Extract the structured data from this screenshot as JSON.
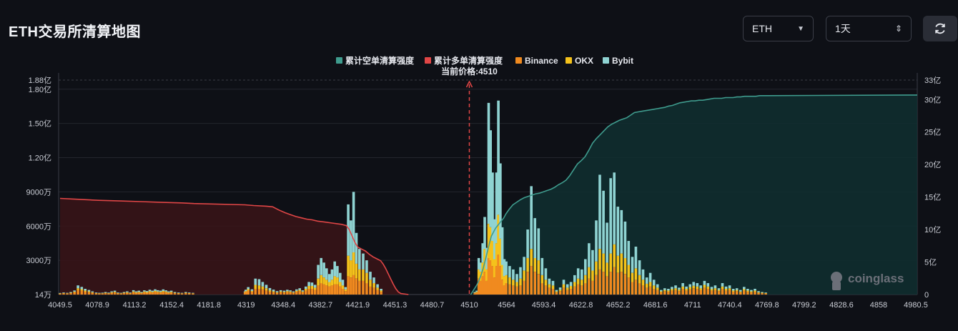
{
  "page": {
    "title": "ETH交易所清算地图"
  },
  "controls": {
    "symbol": "ETH",
    "range": "1天"
  },
  "colors": {
    "short_cum": "#3f9c8e",
    "long_cum": "#e04646",
    "binance": "#f08a1f",
    "okx": "#f5c21b",
    "bybit": "#8fd3d2",
    "background": "#0e1016"
  },
  "chart_data": {
    "type": "bar",
    "current_price_label": "当前价格:4510",
    "current_price": 4510,
    "legend": [
      "累计空单清算强度",
      "累计多单清算强度",
      "Binance",
      "OKX",
      "Bybit"
    ],
    "legend_placement": "top-center",
    "x_ticks": [
      "4049.5",
      "4078.9",
      "4113.2",
      "4152.4",
      "4181.8",
      "4319",
      "4348.4",
      "4382.7",
      "4421.9",
      "4451.3",
      "4480.7",
      "4510",
      "4564",
      "4593.4",
      "4622.8",
      "4652.2",
      "4681.6",
      "4711",
      "4740.4",
      "4769.8",
      "4799.2",
      "4828.6",
      "4858",
      "4980.5"
    ],
    "y_left_ticks": [
      "1.88亿",
      "1.80亿",
      "1.50亿",
      "1.20亿",
      "9000万",
      "6000万",
      "3000万",
      "14万"
    ],
    "y_left_range": [
      1400000,
      188000000
    ],
    "y_right_ticks": [
      "33亿",
      "30亿",
      "25亿",
      "20亿",
      "15亿",
      "10亿",
      "5亿",
      "0"
    ],
    "y_right_range": [
      0,
      33
    ],
    "y_right_unit": "亿",
    "bars": [
      [
        4049.5,
        0.7,
        0.3,
        0.4
      ],
      [
        4052.3,
        1.0,
        0.3,
        0.5
      ],
      [
        4055.2,
        0.8,
        0.3,
        0.4
      ],
      [
        4058.0,
        1.2,
        0.4,
        0.6
      ],
      [
        4060.9,
        2.0,
        0.6,
        1.0
      ],
      [
        4063.7,
        4.0,
        1.5,
        2.5
      ],
      [
        4066.6,
        3.5,
        1.2,
        2.0
      ],
      [
        4069.4,
        2.5,
        1.0,
        1.5
      ],
      [
        4072.3,
        2.0,
        0.8,
        1.2
      ],
      [
        4075.1,
        1.5,
        0.5,
        0.8
      ],
      [
        4078.0,
        1.0,
        0.3,
        0.5
      ],
      [
        4080.8,
        0.8,
        0.3,
        0.4
      ],
      [
        4083.7,
        0.8,
        0.3,
        0.5
      ],
      [
        4086.5,
        1.2,
        0.4,
        0.6
      ],
      [
        4089.4,
        0.9,
        0.3,
        0.5
      ],
      [
        4092.2,
        1.5,
        0.5,
        0.8
      ],
      [
        4095.1,
        1.8,
        0.6,
        1.0
      ],
      [
        4097.9,
        1.0,
        0.3,
        0.5
      ],
      [
        4100.8,
        0.8,
        0.3,
        0.4
      ],
      [
        4103.6,
        1.2,
        0.4,
        0.6
      ],
      [
        4106.5,
        1.5,
        0.5,
        0.8
      ],
      [
        4109.3,
        1.0,
        0.3,
        0.5
      ],
      [
        4112.2,
        2.0,
        0.7,
        1.1
      ],
      [
        4115.0,
        1.5,
        0.5,
        0.8
      ],
      [
        4117.9,
        1.8,
        0.6,
        1.0
      ],
      [
        4120.7,
        1.2,
        0.4,
        0.6
      ],
      [
        4123.6,
        2.0,
        0.7,
        1.0
      ],
      [
        4126.4,
        1.6,
        0.6,
        0.9
      ],
      [
        4129.3,
        2.2,
        0.8,
        1.2
      ],
      [
        4132.1,
        1.8,
        0.6,
        1.0
      ],
      [
        4135.0,
        2.5,
        0.8,
        1.3
      ],
      [
        4137.8,
        2.0,
        0.7,
        1.1
      ],
      [
        4140.7,
        1.8,
        0.6,
        1.0
      ],
      [
        4143.5,
        2.4,
        0.8,
        1.3
      ],
      [
        4146.4,
        2.0,
        0.7,
        1.0
      ],
      [
        4149.2,
        1.5,
        0.5,
        0.8
      ],
      [
        4152.1,
        1.8,
        0.6,
        1.0
      ],
      [
        4154.9,
        1.2,
        0.4,
        0.6
      ],
      [
        4157.8,
        1.0,
        0.3,
        0.5
      ],
      [
        4160.6,
        0.8,
        0.3,
        0.4
      ],
      [
        4163.5,
        1.2,
        0.4,
        0.6
      ],
      [
        4166.3,
        1.0,
        0.3,
        0.5
      ],
      [
        4169.2,
        0.8,
        0.3,
        0.4
      ],
      [
        4315.0,
        1.5,
        0.5,
        0.8
      ],
      [
        4317.9,
        2.2,
        0.8,
        1.2
      ],
      [
        4320.7,
        3.5,
        1.2,
        1.8
      ],
      [
        4323.6,
        2.5,
        0.8,
        1.3
      ],
      [
        4326.4,
        5.0,
        3.5,
        5.5
      ],
      [
        4329.3,
        5.0,
        3.0,
        5.5
      ],
      [
        4332.1,
        4.5,
        2.5,
        4.0
      ],
      [
        4335.0,
        3.5,
        2.0,
        3.0
      ],
      [
        4337.8,
        2.5,
        1.2,
        2.0
      ],
      [
        4340.7,
        2.0,
        0.8,
        1.5
      ],
      [
        4343.5,
        1.5,
        0.5,
        1.0
      ],
      [
        4346.4,
        2.0,
        0.8,
        1.0
      ],
      [
        4349.2,
        1.8,
        0.6,
        1.0
      ],
      [
        4352.1,
        2.2,
        0.8,
        1.2
      ],
      [
        4354.9,
        2.0,
        0.7,
        1.0
      ],
      [
        4357.8,
        1.5,
        0.5,
        0.8
      ],
      [
        4360.6,
        2.5,
        0.8,
        1.2
      ],
      [
        4363.5,
        3.0,
        1.0,
        1.5
      ],
      [
        4366.3,
        2.0,
        0.7,
        1.0
      ],
      [
        4369.2,
        3.5,
        1.5,
        2.0
      ],
      [
        4372.0,
        5.0,
        2.5,
        3.5
      ],
      [
        4374.9,
        5.0,
        2.5,
        3.0
      ],
      [
        4377.7,
        4.0,
        2.0,
        2.5
      ],
      [
        4380.6,
        8.0,
        6.0,
        12.0
      ],
      [
        4383.4,
        10.0,
        7.0,
        15.0
      ],
      [
        4386.3,
        9.0,
        6.0,
        13.0
      ],
      [
        4389.1,
        8.0,
        5.0,
        10.0
      ],
      [
        4392.0,
        7.0,
        4.0,
        7.0
      ],
      [
        4394.8,
        8.0,
        5.0,
        9.0
      ],
      [
        4397.7,
        9.0,
        7.0,
        13.0
      ],
      [
        4400.5,
        9.0,
        6.0,
        10.0
      ],
      [
        4403.4,
        7.0,
        4.0,
        8.0
      ],
      [
        4406.2,
        5.0,
        3.0,
        5.0
      ],
      [
        4409.1,
        3.0,
        1.5,
        2.0
      ],
      [
        4411.9,
        16.0,
        18.0,
        45.0
      ],
      [
        4414.8,
        15.0,
        15.0,
        35.0
      ],
      [
        4417.6,
        17.0,
        20.0,
        53.0
      ],
      [
        4420.5,
        14.0,
        13.0,
        27.0
      ],
      [
        4423.3,
        12.0,
        10.0,
        18.0
      ],
      [
        4426.2,
        12.0,
        10.0,
        14.0
      ],
      [
        4429.0,
        10.0,
        9.0,
        11.0
      ],
      [
        4431.9,
        7.0,
        6.0,
        7.0
      ],
      [
        4434.7,
        6.0,
        4.0,
        5.0
      ],
      [
        4437.6,
        4.0,
        2.0,
        3.0
      ],
      [
        4440.4,
        2.5,
        1.0,
        1.5
      ],
      [
        4518.0,
        1.2,
        0.4,
        0.6
      ],
      [
        4520.9,
        1.8,
        0.6,
        1.0
      ],
      [
        4523.7,
        14.0,
        8.0,
        10.0
      ],
      [
        4526.6,
        12.0,
        8.0,
        8.0
      ],
      [
        4529.4,
        16.0,
        12.0,
        17.0
      ],
      [
        4532.3,
        20.0,
        20.0,
        28.0
      ],
      [
        4535.1,
        12.0,
        10.0,
        19.0
      ],
      [
        4538.0,
        32.0,
        30.0,
        106.0
      ],
      [
        4540.8,
        30.0,
        29.0,
        85.0
      ],
      [
        4543.7,
        25.0,
        22.0,
        60.0
      ],
      [
        4546.5,
        15.0,
        16.0,
        35.0
      ],
      [
        4549.4,
        25.0,
        20.0,
        62.0
      ],
      [
        4552.2,
        35.0,
        35.0,
        100.0
      ],
      [
        4555.1,
        25.0,
        24.0,
        66.0
      ],
      [
        4557.9,
        13.0,
        13.0,
        33.0
      ],
      [
        4560.8,
        8.0,
        8.0,
        15.0
      ],
      [
        4563.6,
        10.0,
        7.0,
        12.0
      ],
      [
        4566.5,
        9.0,
        6.0,
        10.0
      ],
      [
        4569.3,
        8.0,
        5.0,
        9.0
      ],
      [
        4572.2,
        7.0,
        4.0,
        7.0
      ],
      [
        4575.0,
        8.0,
        6.0,
        10.0
      ],
      [
        4577.9,
        12.0,
        9.0,
        12.0
      ],
      [
        4580.7,
        20.0,
        12.0,
        25.0
      ],
      [
        4583.6,
        25.0,
        15.0,
        55.0
      ],
      [
        4586.4,
        20.0,
        12.0,
        35.0
      ],
      [
        4589.3,
        18.0,
        12.0,
        28.0
      ],
      [
        4592.1,
        10.0,
        7.0,
        15.0
      ],
      [
        4595.0,
        8.0,
        5.0,
        10.0
      ],
      [
        4597.8,
        6.0,
        3.0,
        5.0
      ],
      [
        4600.7,
        5.0,
        3.0,
        4.0
      ],
      [
        4603.5,
        2.0,
        0.8,
        1.2
      ],
      [
        4606.4,
        3.0,
        1.2,
        2.0
      ],
      [
        4609.2,
        6.0,
        3.0,
        4.0
      ],
      [
        4612.1,
        4.0,
        2.0,
        3.0
      ],
      [
        4614.9,
        5.0,
        2.5,
        3.5
      ],
      [
        4617.8,
        7.0,
        4.0,
        6.0
      ],
      [
        4620.6,
        9.0,
        5.0,
        9.0
      ],
      [
        4623.5,
        8.0,
        5.0,
        9.0
      ],
      [
        4626.3,
        10.0,
        7.0,
        14.0
      ],
      [
        4629.2,
        14.0,
        10.0,
        21.0
      ],
      [
        4632.0,
        12.0,
        9.0,
        18.0
      ],
      [
        4634.9,
        17.0,
        12.0,
        36.0
      ],
      [
        4637.7,
        22.0,
        18.0,
        65.0
      ],
      [
        4640.6,
        20.0,
        16.0,
        55.0
      ],
      [
        4643.4,
        16.0,
        12.0,
        35.0
      ],
      [
        4646.3,
        20.0,
        16.0,
        66.0
      ],
      [
        4649.1,
        24.0,
        20.0,
        63.0
      ],
      [
        4652.0,
        19.0,
        15.0,
        43.0
      ],
      [
        4654.8,
        20.0,
        16.0,
        38.0
      ],
      [
        4657.7,
        18.0,
        14.0,
        32.0
      ],
      [
        4660.5,
        15.0,
        11.0,
        21.0
      ],
      [
        4663.4,
        11.0,
        8.0,
        14.0
      ],
      [
        4666.2,
        13.0,
        10.0,
        19.0
      ],
      [
        4669.1,
        10.0,
        7.0,
        13.0
      ],
      [
        4671.9,
        8.0,
        5.0,
        9.0
      ],
      [
        4674.8,
        6.0,
        3.5,
        5.5
      ],
      [
        4677.6,
        7.0,
        4.0,
        8.0
      ],
      [
        4680.5,
        5.0,
        3.0,
        5.0
      ],
      [
        4683.3,
        4.0,
        2.0,
        3.0
      ],
      [
        4686.2,
        2.0,
        0.8,
        1.2
      ],
      [
        4689.0,
        3.0,
        1.0,
        1.5
      ],
      [
        4691.9,
        2.5,
        1.0,
        1.5
      ],
      [
        4694.7,
        3.5,
        1.2,
        2.0
      ],
      [
        4697.6,
        4.0,
        1.5,
        2.5
      ],
      [
        4700.4,
        3.0,
        1.2,
        1.8
      ],
      [
        4703.3,
        5.0,
        2.0,
        3.0
      ],
      [
        4706.1,
        3.5,
        1.5,
        2.0
      ],
      [
        4709.0,
        4.5,
        2.0,
        2.5
      ],
      [
        4711.8,
        5.5,
        2.2,
        3.3
      ],
      [
        4714.7,
        5.0,
        2.0,
        3.0
      ],
      [
        4717.5,
        4.0,
        1.5,
        2.5
      ],
      [
        4720.4,
        6.0,
        2.5,
        3.5
      ],
      [
        4723.2,
        5.0,
        2.0,
        3.0
      ],
      [
        4726.1,
        3.5,
        1.2,
        2.0
      ],
      [
        4728.9,
        4.0,
        1.5,
        2.5
      ],
      [
        4731.8,
        3.0,
        1.0,
        1.5
      ],
      [
        4734.6,
        5.0,
        2.0,
        3.0
      ],
      [
        4737.5,
        3.5,
        1.5,
        2.0
      ],
      [
        4740.3,
        4.0,
        1.5,
        2.5
      ],
      [
        4743.2,
        2.5,
        1.0,
        1.5
      ],
      [
        4746.0,
        3.0,
        1.0,
        1.5
      ],
      [
        4748.9,
        2.0,
        0.7,
        1.3
      ],
      [
        4751.7,
        3.5,
        1.2,
        2.0
      ],
      [
        4754.6,
        2.5,
        1.0,
        1.5
      ],
      [
        4757.4,
        2.0,
        0.8,
        1.2
      ],
      [
        4760.3,
        2.5,
        1.0,
        1.5
      ],
      [
        4763.1,
        1.5,
        0.5,
        1.0
      ],
      [
        4766.0,
        1.2,
        0.4,
        0.6
      ],
      [
        4768.8,
        1.0,
        0.3,
        0.5
      ]
    ],
    "short_cumulative": [
      [
        4512,
        0
      ],
      [
        4515,
        0.5
      ],
      [
        4518,
        1.0
      ],
      [
        4521,
        1.5
      ],
      [
        4524,
        2.2
      ],
      [
        4527,
        3.0
      ],
      [
        4530,
        4.0
      ],
      [
        4533,
        5.2
      ],
      [
        4536,
        6.5
      ],
      [
        4539,
        7.8
      ],
      [
        4542,
        9.0
      ],
      [
        4545,
        9.6
      ],
      [
        4548,
        10.2
      ],
      [
        4551,
        10.6
      ],
      [
        4554,
        11.0
      ],
      [
        4557,
        11.4
      ],
      [
        4560,
        11.8
      ],
      [
        4563,
        12.4
      ],
      [
        4566,
        13.1
      ],
      [
        4569,
        13.8
      ],
      [
        4572,
        14.2
      ],
      [
        4575,
        14.6
      ],
      [
        4578,
        14.9
      ],
      [
        4581,
        15.1
      ],
      [
        4584,
        15.3
      ],
      [
        4587,
        15.5
      ],
      [
        4590,
        15.6
      ],
      [
        4593,
        15.8
      ],
      [
        4596,
        16.0
      ],
      [
        4599,
        16.2
      ],
      [
        4602,
        16.5
      ],
      [
        4605,
        16.9
      ],
      [
        4608,
        17.2
      ],
      [
        4611,
        17.6
      ],
      [
        4614,
        18.3
      ],
      [
        4617,
        19.2
      ],
      [
        4620,
        20.1
      ],
      [
        4623,
        20.6
      ],
      [
        4626,
        21.2
      ],
      [
        4629,
        22.2
      ],
      [
        4632,
        23.3
      ],
      [
        4635,
        24.0
      ],
      [
        4638,
        24.6
      ],
      [
        4641,
        25.2
      ],
      [
        4644,
        25.8
      ],
      [
        4647,
        26.2
      ],
      [
        4650,
        26.5
      ],
      [
        4653,
        26.8
      ],
      [
        4656,
        27.0
      ],
      [
        4659,
        27.2
      ],
      [
        4662,
        27.6
      ],
      [
        4665,
        28.0
      ],
      [
        4668,
        28.1
      ],
      [
        4671,
        28.2
      ],
      [
        4674,
        28.3
      ],
      [
        4677,
        28.4
      ],
      [
        4680,
        28.5
      ],
      [
        4683,
        28.6
      ],
      [
        4686,
        28.7
      ],
      [
        4689,
        28.8
      ],
      [
        4692,
        29.0
      ],
      [
        4695,
        29.1
      ],
      [
        4698,
        29.3
      ],
      [
        4701,
        29.5
      ],
      [
        4704,
        29.6
      ],
      [
        4707,
        29.7
      ],
      [
        4710,
        29.8
      ],
      [
        4713,
        29.8
      ],
      [
        4716,
        29.9
      ],
      [
        4719,
        29.9
      ],
      [
        4722,
        30.0
      ],
      [
        4725,
        30.1
      ],
      [
        4728,
        30.2
      ],
      [
        4731,
        30.2
      ],
      [
        4734,
        30.2
      ],
      [
        4737,
        30.3
      ],
      [
        4740,
        30.3
      ],
      [
        4743,
        30.3
      ],
      [
        4746,
        30.4
      ],
      [
        4749,
        30.4
      ],
      [
        4752,
        30.5
      ],
      [
        4755,
        30.5
      ],
      [
        4758,
        30.5
      ],
      [
        4761,
        30.5
      ],
      [
        4764,
        30.6
      ],
      [
        4767,
        30.6
      ],
      [
        4770,
        30.6
      ]
    ],
    "long_cumulative": [
      [
        4049.5,
        14.8
      ],
      [
        4060,
        14.7
      ],
      [
        4080,
        14.5
      ],
      [
        4100,
        14.4
      ],
      [
        4120,
        14.3
      ],
      [
        4140,
        14.2
      ],
      [
        4160,
        14.1
      ],
      [
        4170,
        14.0
      ],
      [
        4315,
        13.8
      ],
      [
        4325,
        13.7
      ],
      [
        4335,
        13.6
      ],
      [
        4340,
        13.5
      ],
      [
        4345,
        13.0
      ],
      [
        4350,
        12.6
      ],
      [
        4355,
        12.3
      ],
      [
        4360,
        12.0
      ],
      [
        4365,
        11.8
      ],
      [
        4370,
        11.6
      ],
      [
        4375,
        11.5
      ],
      [
        4380,
        11.3
      ],
      [
        4385,
        11.2
      ],
      [
        4390,
        11.1
      ],
      [
        4395,
        11.0
      ],
      [
        4400,
        10.9
      ],
      [
        4405,
        10.8
      ],
      [
        4410,
        10.6
      ],
      [
        4413,
        10.0
      ],
      [
        4416,
        9.0
      ],
      [
        4419,
        8.0
      ],
      [
        4422,
        7.3
      ],
      [
        4425,
        7.0
      ],
      [
        4428,
        6.7
      ],
      [
        4431,
        6.2
      ],
      [
        4434,
        5.8
      ],
      [
        4437,
        5.5
      ],
      [
        4440,
        5.2
      ],
      [
        4442,
        4.7
      ],
      [
        4444,
        4.0
      ],
      [
        4446,
        3.2
      ],
      [
        4448,
        2.4
      ],
      [
        4450,
        1.6
      ],
      [
        4452,
        0.9
      ],
      [
        4454,
        0.4
      ],
      [
        4456,
        0.15
      ],
      [
        4460,
        0.05
      ],
      [
        4462,
        0
      ]
    ],
    "x_range": [
      4049.5,
      4770
    ]
  }
}
